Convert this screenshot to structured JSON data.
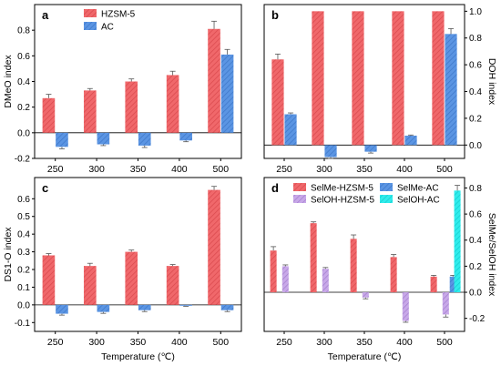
{
  "chart_data": [
    {
      "panel": "a",
      "type": "bar",
      "ylabel": "DMeO index",
      "xlabel": "",
      "categories": [
        "250",
        "300",
        "350",
        "400",
        "500"
      ],
      "ylim": [
        -0.2,
        1.0
      ],
      "yticks": [
        "-0.2",
        "0.0",
        "0.2",
        "0.4",
        "0.6",
        "0.8"
      ],
      "ytick_values": [
        -0.2,
        0.0,
        0.2,
        0.4,
        0.6,
        0.8
      ],
      "legend": {
        "placement": "top-center",
        "entries": [
          "HZSM-5",
          "AC"
        ]
      },
      "series": [
        {
          "name": "HZSM-5",
          "values": [
            0.27,
            0.33,
            0.4,
            0.45,
            0.81
          ],
          "errors": [
            0.03,
            0.015,
            0.02,
            0.03,
            0.06
          ]
        },
        {
          "name": "AC",
          "values": [
            -0.11,
            -0.09,
            -0.1,
            -0.06,
            0.61
          ],
          "errors": [
            0.015,
            0.01,
            0.015,
            0.01,
            0.04
          ]
        }
      ]
    },
    {
      "panel": "b",
      "type": "bar",
      "ylabel": "DOH index",
      "xlabel": "",
      "categories": [
        "250",
        "300",
        "350",
        "400",
        "500"
      ],
      "ylim": [
        -0.1,
        1.05
      ],
      "yticks": [
        "0.0",
        "0.2",
        "0.4",
        "0.6",
        "0.8",
        "1.0"
      ],
      "ytick_values": [
        0.0,
        0.2,
        0.4,
        0.6,
        0.8,
        1.0
      ],
      "series": [
        {
          "name": "HZSM-5",
          "values": [
            0.64,
            1.0,
            1.0,
            1.0,
            1.0
          ],
          "errors": [
            0.04,
            0,
            0,
            0,
            0
          ]
        },
        {
          "name": "AC",
          "values": [
            0.23,
            -0.09,
            -0.05,
            0.07,
            0.83
          ],
          "errors": [
            0.01,
            0.01,
            0.01,
            0.005,
            0.04
          ]
        }
      ]
    },
    {
      "panel": "c",
      "type": "bar",
      "ylabel": "DS1-O index",
      "xlabel": "Temperature (℃)",
      "categories": [
        "250",
        "300",
        "350",
        "400",
        "500"
      ],
      "ylim": [
        -0.15,
        0.72
      ],
      "yticks": [
        "-0.1",
        "0.0",
        "0.1",
        "0.2",
        "0.3",
        "0.4",
        "0.5",
        "0.6"
      ],
      "ytick_values": [
        -0.1,
        0.0,
        0.1,
        0.2,
        0.3,
        0.4,
        0.5,
        0.6
      ],
      "series": [
        {
          "name": "HZSM-5",
          "values": [
            0.28,
            0.22,
            0.3,
            0.22,
            0.65
          ],
          "errors": [
            0.01,
            0.015,
            0.01,
            0.008,
            0.02
          ]
        },
        {
          "name": "AC",
          "values": [
            -0.05,
            -0.04,
            -0.03,
            -0.005,
            -0.03
          ],
          "errors": [
            0.008,
            0.008,
            0.008,
            0.003,
            0.008
          ]
        }
      ]
    },
    {
      "panel": "d",
      "type": "bar",
      "ylabel": "SelMe/SelOH index",
      "xlabel": "Temperature (℃)",
      "categories": [
        "250",
        "300",
        "350",
        "400",
        "500"
      ],
      "ylim": [
        -0.3,
        0.88
      ],
      "yticks": [
        "-0.2",
        "0.0",
        "0.2",
        "0.4",
        "0.6",
        "0.8"
      ],
      "ytick_values": [
        -0.2,
        0.0,
        0.2,
        0.4,
        0.6,
        0.8
      ],
      "legend": {
        "placement": "top",
        "entries": [
          "SelMe-HZSM-5",
          "SelMe-AC",
          "SelOH-HZSM-5",
          "SelOH-AC"
        ]
      },
      "series": [
        {
          "name": "SelMe-HZSM-5",
          "values": [
            0.32,
            0.53,
            0.41,
            0.27,
            0.12
          ],
          "errors": [
            0.03,
            0.01,
            0.03,
            0.02,
            0.01
          ]
        },
        {
          "name": "SelMe-AC",
          "values": [
            null,
            null,
            null,
            null,
            0.12
          ],
          "errors": [
            0,
            0,
            0,
            0,
            0.01
          ]
        },
        {
          "name": "SelOH-HZSM-5",
          "values": [
            0.2,
            0.18,
            -0.04,
            -0.22,
            -0.17
          ],
          "errors": [
            0.01,
            0.01,
            0.01,
            0.01,
            0.02
          ]
        },
        {
          "name": "SelOH-AC",
          "values": [
            null,
            null,
            null,
            null,
            0.78
          ],
          "errors": [
            0,
            0,
            0,
            0,
            0.04
          ]
        }
      ]
    }
  ],
  "colors": {
    "hzsm": "#f0686b",
    "hzsm_hatch": "#d9484c",
    "ac": "#5b95e3",
    "ac_hatch": "#3d76c8",
    "selohhzsm": "#c8a8e8",
    "selohhzsm_hatch": "#a27dcf",
    "selohac": "#30ecec",
    "selohac_hatch": "#12cccc"
  },
  "panel_labels": [
    "a",
    "b",
    "c",
    "d"
  ]
}
